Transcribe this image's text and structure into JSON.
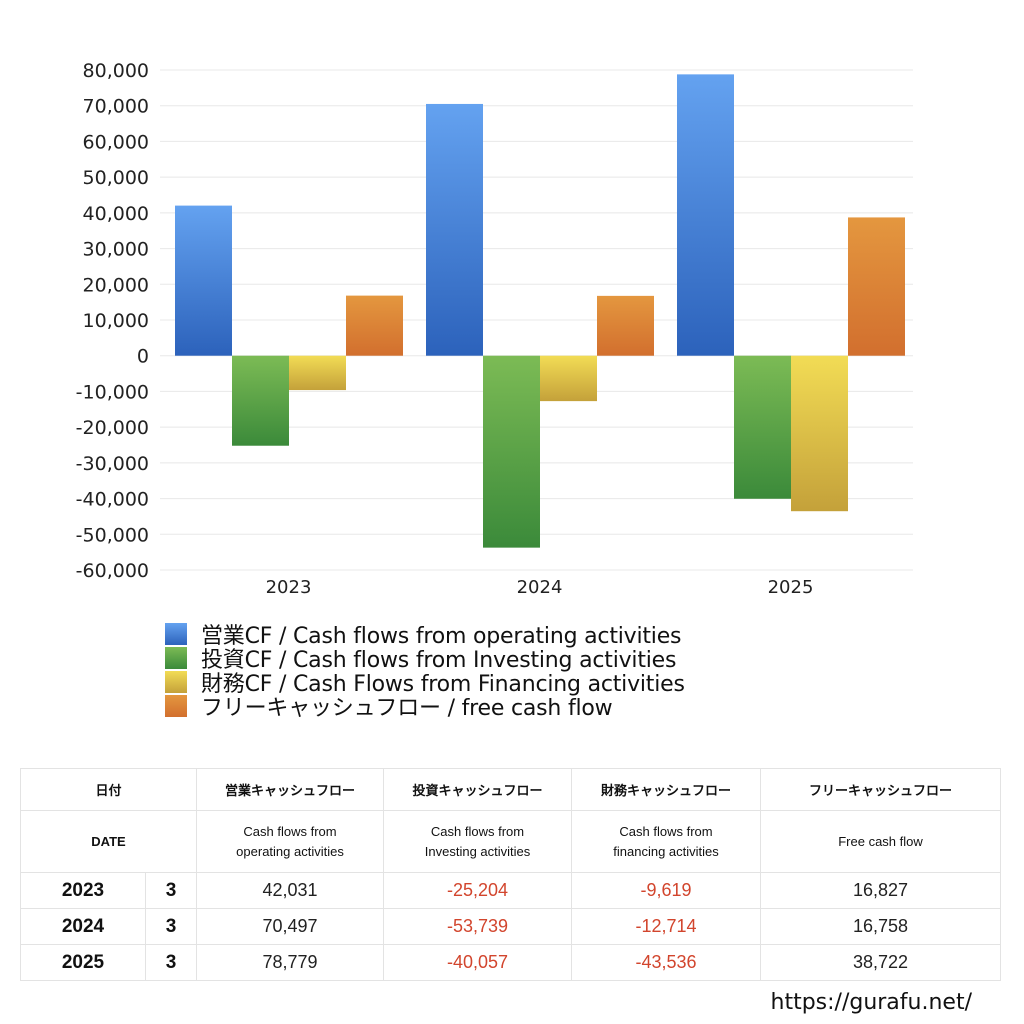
{
  "chart_data": {
    "type": "bar",
    "title": "",
    "xlabel": "",
    "ylabel": "",
    "categories": [
      "2023",
      "2024",
      "2025"
    ],
    "series": [
      {
        "name": "営業CF / Cash flows from operating activities",
        "values": [
          42031,
          70497,
          78779
        ],
        "color_top": "#64a2f0",
        "color_bottom": "#2c62bb"
      },
      {
        "name": "投資CF / Cash flows from Investing activities",
        "values": [
          -25204,
          -53739,
          -40057
        ],
        "color_top": "#7cbb55",
        "color_bottom": "#3b8a3a"
      },
      {
        "name": "財務CF / Cash Flows from Financing activities",
        "values": [
          -9619,
          -12714,
          -43536
        ],
        "color_top": "#f2dc55",
        "color_bottom": "#c4a13a"
      },
      {
        "name": "フリーキャッシュフロー / free cash flow",
        "values": [
          16827,
          16758,
          38722
        ],
        "color_top": "#e4973f",
        "color_bottom": "#d26f2e"
      }
    ],
    "ylim": [
      -60000,
      80000
    ],
    "yticks": [
      80000,
      70000,
      60000,
      50000,
      40000,
      30000,
      20000,
      10000,
      0,
      -10000,
      -20000,
      -30000,
      -40000,
      -50000,
      -60000
    ],
    "ytick_labels": [
      "80,000",
      "70,000",
      "60,000",
      "50,000",
      "40,000",
      "30,000",
      "20,000",
      "10,000",
      "0",
      "-10,000",
      "-20,000",
      "-30,000",
      "-40,000",
      "-50,000",
      "-60,000"
    ],
    "grid": true,
    "legend_position": "bottom"
  },
  "legend": {
    "items": [
      {
        "label": "営業CF / Cash flows from operating activities"
      },
      {
        "label": "投資CF / Cash flows from Investing activities"
      },
      {
        "label": "財務CF / Cash Flows from Financing activities"
      },
      {
        "label": "フリーキャッシュフロー / free cash flow"
      }
    ]
  },
  "table": {
    "header_jp": {
      "date": "日付",
      "operating": "営業キャッシュフロー",
      "investing": "投資キャッシュフロー",
      "financing": "財務キャッシュフロー",
      "free": "フリーキャッシュフロー"
    },
    "header_en": {
      "date": "DATE",
      "operating_1": "Cash flows from",
      "operating_2": "operating activities",
      "investing_1": "Cash flows from",
      "investing_2": "Investing activities",
      "financing_1": "Cash flows from",
      "financing_2": "financing activities",
      "free": "Free cash flow"
    },
    "rows": [
      {
        "year": "2023",
        "month": "3",
        "operating": "42,031",
        "investing": "-25,204",
        "financing": "-9,619",
        "free": "16,827"
      },
      {
        "year": "2024",
        "month": "3",
        "operating": "70,497",
        "investing": "-53,739",
        "financing": "-12,714",
        "free": "16,758"
      },
      {
        "year": "2025",
        "month": "3",
        "operating": "78,779",
        "investing": "-40,057",
        "financing": "-43,536",
        "free": "38,722"
      }
    ]
  },
  "footer": {
    "url": "https://gurafu.net/"
  },
  "colors": {
    "negative_text": "#d2452d",
    "gridline": "#e8e8e8",
    "table_border": "#e3e3e3"
  }
}
